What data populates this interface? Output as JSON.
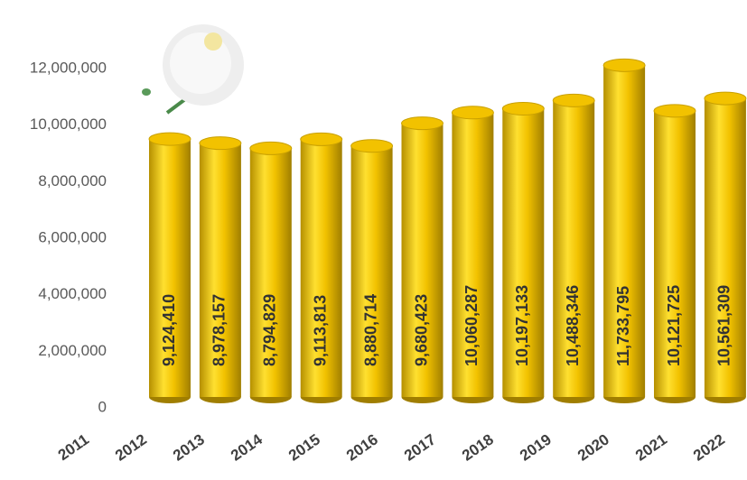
{
  "chart_data": {
    "type": "bar",
    "categories": [
      "2011",
      "2012",
      "2013",
      "2014",
      "2015",
      "2016",
      "2017",
      "2018",
      "2019",
      "2020",
      "2021",
      "2022"
    ],
    "values": [
      9124410,
      8978157,
      8794829,
      9113813,
      8880714,
      9680423,
      10060287,
      10197133,
      10488346,
      11733795,
      10121725,
      10561309
    ],
    "value_labels": [
      "9,124,410",
      "8,978,157",
      "8,794,829",
      "9,113,813",
      "8,880,714",
      "9,680,423",
      "10,060,287",
      "10,197,133",
      "10,488,346",
      "11,733,795",
      "10,121,725",
      "10,561,309"
    ],
    "color": "#f2c200",
    "ylim": [
      0,
      13000000
    ],
    "yticks": [
      0,
      {
        "value": 2000000,
        "label": "2,000,000"
      },
      {
        "value": 4000000,
        "label": "4,000,000"
      },
      {
        "value": 6000000,
        "label": "6,000,000"
      },
      {
        "value": 8000000,
        "label": "8,000,000"
      },
      {
        "value": 10000000,
        "label": "10,000,000"
      },
      {
        "value": 12000000,
        "label": "12,000,000"
      }
    ],
    "grid": false
  }
}
